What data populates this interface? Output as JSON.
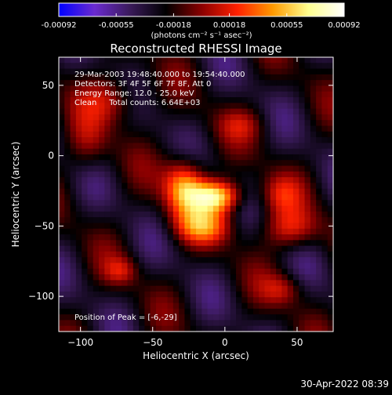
{
  "chart_data": {
    "type": "heatmap",
    "title": "Reconstructed RHESSI Image",
    "xlabel": "Heliocentric X (arcsec)",
    "ylabel": "Heliocentric Y (arcsec)",
    "xlim": [
      -115,
      75
    ],
    "ylim": [
      -125,
      70
    ],
    "x_ticks": [
      -100,
      -50,
      0,
      50
    ],
    "y_ticks": [
      50,
      0,
      -50,
      -100
    ],
    "colorbar": {
      "range": [
        -0.00092,
        0.00092
      ],
      "tick_labels": [
        "-0.00092",
        "-0.00055",
        "-0.00018",
        "0.00018",
        "0.00055",
        "0.00092"
      ],
      "unit_label": "(photons cm⁻² s⁻¹ asec⁻²)",
      "colormap": [
        "#0000ff",
        "#6b2bd0",
        "#3a1a5a",
        "#000000",
        "#8a0000",
        "#ff2000",
        "#ff9a00",
        "#ffff90",
        "#ffffff"
      ]
    },
    "info_lines": [
      "29-Mar-2003 19:48:40.000 to 19:54:40.000",
      "Detectors: 3F 4F 5F 6F 7F 8F, Att 0",
      "Energy Range: 12.0 - 25.0 keV",
      "Clean     Total counts: 6.64E+03"
    ],
    "peak_label": "Position of Peak = [-6,-29]",
    "peak": {
      "x": -6,
      "y": -29
    },
    "sources": [
      {
        "x": -6,
        "y": -29,
        "amp": 0.00092,
        "sx": 12,
        "sy": 8
      },
      {
        "x": -28,
        "y": -22,
        "amp": 0.00075,
        "sx": 10,
        "sy": 14
      },
      {
        "x": -15,
        "y": -50,
        "amp": 0.00055,
        "sx": 14,
        "sy": 9
      },
      {
        "x": 45,
        "y": -52,
        "amp": 0.00042,
        "sx": 14,
        "sy": 10
      },
      {
        "x": 38,
        "y": -28,
        "amp": 0.00032,
        "sx": 10,
        "sy": 10
      },
      {
        "x": -78,
        "y": 40,
        "amp": 0.00038,
        "sx": 14,
        "sy": 12
      },
      {
        "x": -95,
        "y": 8,
        "amp": 0.00025,
        "sx": 10,
        "sy": 14
      },
      {
        "x": -72,
        "y": -82,
        "amp": 0.0003,
        "sx": 8,
        "sy": 7
      },
      {
        "x": 40,
        "y": -95,
        "amp": 0.0003,
        "sx": 10,
        "sy": 8
      },
      {
        "x": 12,
        "y": 22,
        "amp": 0.00022,
        "sx": 12,
        "sy": 8
      }
    ],
    "background_amp": 0.0003
  },
  "footer": {
    "timestamp": "30-Apr-2022 08:39"
  }
}
